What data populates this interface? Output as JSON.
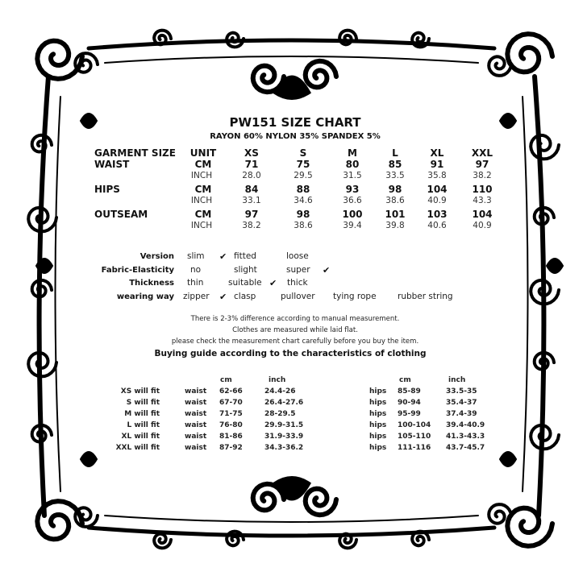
{
  "title": "PW151 SIZE CHART",
  "subtitle": "RAYON 60% NYLON 35% SPANDEX 5%",
  "size_table": {
    "header": [
      "GARMENT SIZE",
      "UNIT",
      "XS",
      "S",
      "M",
      "L",
      "XL",
      "XXL"
    ],
    "rows": [
      {
        "label": "WAIST",
        "unit": "CM",
        "values": [
          "71",
          "75",
          "80",
          "85",
          "91",
          "97"
        ],
        "unit2": "INCH",
        "values2": [
          "28.0",
          "29.5",
          "31.5",
          "33.5",
          "35.8",
          "38.2"
        ]
      },
      {
        "label": "HIPS",
        "unit": "CM",
        "values": [
          "84",
          "88",
          "93",
          "98",
          "104",
          "110"
        ],
        "unit2": "INCH",
        "values2": [
          "33.1",
          "34.6",
          "36.6",
          "38.6",
          "40.9",
          "43.3"
        ]
      },
      {
        "label": "OUTSEAM",
        "unit": "CM",
        "values": [
          "97",
          "98",
          "100",
          "101",
          "103",
          "104"
        ],
        "unit2": "INCH",
        "values2": [
          "38.2",
          "38.6",
          "39.4",
          "39.8",
          "40.6",
          "40.9"
        ]
      }
    ]
  },
  "features": [
    {
      "label": "Version",
      "options": [
        "slim",
        "fitted",
        "loose"
      ],
      "checked": "slim"
    },
    {
      "label": "Fabric-Elasticity",
      "options": [
        "no",
        "slight",
        "super"
      ],
      "checked": "super"
    },
    {
      "label": "Thickness",
      "options": [
        "thin",
        "suitable",
        "thick"
      ],
      "checked": "suitable"
    },
    {
      "label": "wearing way",
      "options": [
        "zipper",
        "clasp",
        "pullover",
        "tying rope",
        "rubber string"
      ],
      "checked": "zipper"
    }
  ],
  "check_mark": "✔",
  "notes": [
    "There is 2-3% difference according to manual measurement.",
    "Clothes are measured while laid flat.",
    "please check the measurement chart carefully before you buy the item."
  ],
  "guide_title": "Buying guide according to the characteristics of clothing",
  "guide": {
    "cm_label": "cm",
    "inch_label": "inch",
    "rows": [
      {
        "fit": "XS will  fit",
        "waist_label": "waist",
        "waist_cm": "62-66",
        "waist_inch": "24.4-26",
        "hips_label": "hips",
        "hips_cm": "85-89",
        "hips_inch": "33.5-35"
      },
      {
        "fit": "S will  fit",
        "waist_label": "waist",
        "waist_cm": "67-70",
        "waist_inch": "26.4-27.6",
        "hips_label": "hips",
        "hips_cm": "90-94",
        "hips_inch": "35.4-37"
      },
      {
        "fit": "M will fit",
        "waist_label": "waist",
        "waist_cm": "71-75",
        "waist_inch": "28-29.5",
        "hips_label": "hips",
        "hips_cm": "95-99",
        "hips_inch": "37.4-39"
      },
      {
        "fit": "L will fit",
        "waist_label": "waist",
        "waist_cm": "76-80",
        "waist_inch": "29.9-31.5",
        "hips_label": "hips",
        "hips_cm": "100-104",
        "hips_inch": "39.4-40.9"
      },
      {
        "fit": "XL will fit",
        "waist_label": "waist",
        "waist_cm": "81-86",
        "waist_inch": "31.9-33.9",
        "hips_label": "hips",
        "hips_cm": "105-110",
        "hips_inch": "41.3-43.3"
      },
      {
        "fit": "XXL will fit",
        "waist_label": "waist",
        "waist_cm": "87-92",
        "waist_inch": "34.3-36.2",
        "hips_label": "hips",
        "hips_cm": "111-116",
        "hips_inch": "43.7-45.7"
      }
    ]
  },
  "frame_color": "#000000"
}
